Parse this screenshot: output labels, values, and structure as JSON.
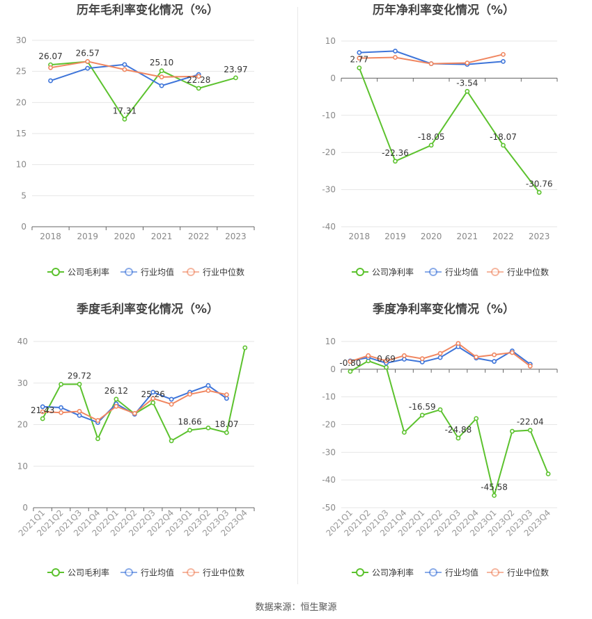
{
  "colors": {
    "company": "#5cc22e",
    "industry_avg": "#3d74d9",
    "industry_median": "#f08660",
    "grid": "#e6e6e6",
    "axis": "#999999"
  },
  "legend": {
    "gross_company": "公司毛利率",
    "net_company": "公司净利率",
    "avg": "行业均值",
    "median": "行业中位数"
  },
  "source": "数据来源：恒生聚源",
  "chart_data": [
    {
      "type": "line",
      "title": "历年毛利率变化情况（%）",
      "categories": [
        "2018",
        "2019",
        "2020",
        "2021",
        "2022",
        "2023"
      ],
      "ylim": [
        0,
        30
      ],
      "yticks": [
        0,
        5,
        10,
        15,
        20,
        25,
        30
      ],
      "grid": true,
      "legend_position": "bottom",
      "series": [
        {
          "name": "公司毛利率",
          "role": "company",
          "values": [
            26.07,
            26.57,
            17.31,
            25.1,
            22.28,
            23.97
          ],
          "labels": [
            "26.07",
            "26.57",
            "17.31",
            "25.10",
            "22.28",
            "23.97"
          ]
        },
        {
          "name": "行业均值",
          "role": "avg",
          "values": [
            23.5,
            25.5,
            26.1,
            22.7,
            24.5,
            null
          ]
        },
        {
          "name": "行业中位数",
          "role": "median",
          "values": [
            25.6,
            26.6,
            25.3,
            24.1,
            24.2,
            null
          ]
        }
      ]
    },
    {
      "type": "line",
      "title": "历年净利率变化情况（%）",
      "categories": [
        "2018",
        "2019",
        "2020",
        "2021",
        "2022",
        "2023"
      ],
      "ylim": [
        -40,
        10
      ],
      "yticks": [
        -40,
        -30,
        -20,
        -10,
        0,
        10
      ],
      "grid": true,
      "legend_position": "bottom",
      "series": [
        {
          "name": "公司净利率",
          "role": "company",
          "values": [
            2.77,
            -22.36,
            -18.05,
            -3.54,
            -18.07,
            -30.76
          ],
          "labels": [
            "2.77",
            "-22.36",
            "-18.05",
            "-3.54",
            "-18.07",
            "-30.76"
          ]
        },
        {
          "name": "行业均值",
          "role": "avg",
          "values": [
            6.9,
            7.3,
            3.9,
            3.7,
            4.5,
            null
          ]
        },
        {
          "name": "行业中位数",
          "role": "median",
          "values": [
            5.4,
            5.6,
            3.9,
            4.1,
            6.4,
            null
          ]
        }
      ]
    },
    {
      "type": "line",
      "title": "季度毛利率变化情况（%）",
      "categories": [
        "2021Q1",
        "2021Q2",
        "2021Q3",
        "2021Q4",
        "2022Q1",
        "2022Q2",
        "2022Q3",
        "2022Q4",
        "2023Q1",
        "2023Q2",
        "2023Q3",
        "2023Q4"
      ],
      "ylim": [
        0,
        40
      ],
      "yticks": [
        0,
        10,
        20,
        30,
        40
      ],
      "grid": true,
      "legend_position": "bottom",
      "series": [
        {
          "name": "公司毛利率",
          "role": "company",
          "values": [
            21.43,
            29.7,
            29.72,
            16.6,
            26.12,
            22.6,
            25.26,
            16.1,
            18.66,
            19.2,
            18.07,
            38.5
          ],
          "labels": [
            "21.43",
            "",
            "29.72",
            "",
            "26.12",
            "",
            "25.26",
            "",
            "18.66",
            "",
            "18.07",
            ""
          ]
        },
        {
          "name": "行业均值",
          "role": "avg",
          "values": [
            24.3,
            24.1,
            22.2,
            20.5,
            25.0,
            22.5,
            27.8,
            26.1,
            27.8,
            29.4,
            26.3,
            null
          ]
        },
        {
          "name": "行业中位数",
          "role": "median",
          "values": [
            23.1,
            22.9,
            23.2,
            21.0,
            24.4,
            22.7,
            26.3,
            24.9,
            27.3,
            28.2,
            27.2,
            null
          ]
        }
      ]
    },
    {
      "type": "line",
      "title": "季度净利率变化情况（%）",
      "categories": [
        "2021Q1",
        "2021Q2",
        "2021Q3",
        "2021Q4",
        "2022Q1",
        "2022Q2",
        "2022Q3",
        "2022Q4",
        "2023Q1",
        "2023Q2",
        "2023Q3",
        "2023Q4"
      ],
      "ylim": [
        -50,
        10
      ],
      "yticks": [
        -50,
        -40,
        -30,
        -20,
        -10,
        0,
        10
      ],
      "grid": true,
      "legend_position": "bottom",
      "series": [
        {
          "name": "公司净利率",
          "role": "company",
          "values": [
            -0.8,
            3.0,
            0.69,
            -22.8,
            -16.59,
            -14.6,
            -24.88,
            -17.8,
            -45.58,
            -22.4,
            -22.04,
            -37.8
          ],
          "labels": [
            "-0.80",
            "",
            "0.69",
            "",
            "-16.59",
            "",
            "-24.88",
            "",
            "-45.58",
            "",
            "-22.04",
            ""
          ]
        },
        {
          "name": "行业均值",
          "role": "avg",
          "values": [
            3.0,
            4.2,
            2.2,
            3.6,
            2.6,
            4.2,
            8.1,
            4.0,
            2.8,
            6.6,
            1.8,
            null
          ]
        },
        {
          "name": "行业中位数",
          "role": "median",
          "values": [
            2.8,
            4.9,
            3.0,
            4.9,
            3.8,
            5.7,
            9.3,
            4.4,
            5.2,
            6.0,
            1.1,
            null
          ]
        }
      ]
    }
  ]
}
